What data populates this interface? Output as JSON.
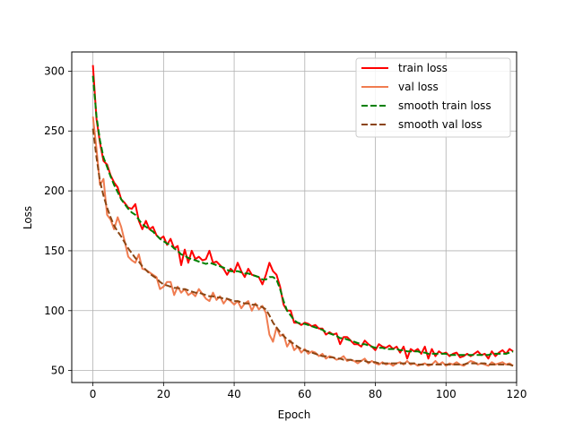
{
  "chart_data": {
    "type": "line",
    "xlabel": "Epoch",
    "ylabel": "Loss",
    "xlim": [
      -6,
      120
    ],
    "ylim": [
      40,
      316
    ],
    "xticks": [
      0,
      20,
      40,
      60,
      80,
      100,
      120
    ],
    "yticks": [
      50,
      100,
      150,
      200,
      250,
      300
    ],
    "grid": true,
    "legend_position": "top-right",
    "series": [
      {
        "name": "train loss",
        "color": "#ff0000",
        "dash": "solid",
        "x": [
          0,
          1,
          2,
          3,
          4,
          5,
          6,
          7,
          8,
          9,
          10,
          11,
          12,
          13,
          14,
          15,
          16,
          17,
          18,
          19,
          20,
          21,
          22,
          23,
          24,
          25,
          26,
          27,
          28,
          29,
          30,
          31,
          32,
          33,
          34,
          35,
          36,
          37,
          38,
          39,
          40,
          41,
          42,
          43,
          44,
          45,
          46,
          47,
          48,
          49,
          50,
          51,
          52,
          53,
          54,
          55,
          56,
          57,
          58,
          59,
          60,
          61,
          62,
          63,
          64,
          65,
          66,
          67,
          68,
          69,
          70,
          71,
          72,
          73,
          74,
          75,
          76,
          77,
          78,
          79,
          80,
          81,
          82,
          83,
          84,
          85,
          86,
          87,
          88,
          89,
          90,
          91,
          92,
          93,
          94,
          95,
          96,
          97,
          98,
          99,
          100,
          101,
          102,
          103,
          104,
          105,
          106,
          107,
          108,
          109,
          110,
          111,
          112,
          113,
          114,
          115,
          116,
          117,
          118,
          119
        ],
        "values": [
          305,
          260,
          240,
          225,
          222,
          213,
          207,
          203,
          193,
          190,
          186,
          185,
          189,
          175,
          168,
          175,
          168,
          170,
          163,
          160,
          162,
          155,
          160,
          152,
          154,
          138,
          151,
          140,
          150,
          143,
          145,
          142,
          143,
          150,
          140,
          141,
          138,
          135,
          130,
          135,
          132,
          140,
          133,
          128,
          135,
          130,
          129,
          128,
          122,
          130,
          140,
          133,
          130,
          120,
          105,
          100,
          100,
          90,
          90,
          88,
          90,
          89,
          87,
          88,
          85,
          85,
          80,
          82,
          80,
          81,
          72,
          78,
          78,
          75,
          72,
          72,
          70,
          75,
          72,
          70,
          67,
          72,
          70,
          69,
          71,
          68,
          70,
          65,
          70,
          60,
          68,
          66,
          68,
          64,
          70,
          60,
          68,
          62,
          66,
          64,
          65,
          62,
          64,
          65,
          61,
          62,
          64,
          62,
          64,
          66,
          63,
          64,
          60,
          66,
          62,
          65,
          67,
          64,
          68,
          66
        ]
      },
      {
        "name": "val loss",
        "color": "#f07c50",
        "dash": "solid",
        "x": [
          0,
          1,
          2,
          3,
          4,
          5,
          6,
          7,
          8,
          9,
          10,
          11,
          12,
          13,
          14,
          15,
          16,
          17,
          18,
          19,
          20,
          21,
          22,
          23,
          24,
          25,
          26,
          27,
          28,
          29,
          30,
          31,
          32,
          33,
          34,
          35,
          36,
          37,
          38,
          39,
          40,
          41,
          42,
          43,
          44,
          45,
          46,
          47,
          48,
          49,
          50,
          51,
          52,
          53,
          54,
          55,
          56,
          57,
          58,
          59,
          60,
          61,
          62,
          63,
          64,
          65,
          66,
          67,
          68,
          69,
          70,
          71,
          72,
          73,
          74,
          75,
          76,
          77,
          78,
          79,
          80,
          81,
          82,
          83,
          84,
          85,
          86,
          87,
          88,
          89,
          90,
          91,
          92,
          93,
          94,
          95,
          96,
          97,
          98,
          99,
          100,
          101,
          102,
          103,
          104,
          105,
          106,
          107,
          108,
          109,
          110,
          111,
          112,
          113,
          114,
          115,
          116,
          117,
          118,
          119
        ],
        "values": [
          262,
          235,
          205,
          210,
          180,
          176,
          168,
          178,
          170,
          158,
          145,
          142,
          140,
          147,
          135,
          134,
          132,
          130,
          128,
          118,
          120,
          124,
          124,
          113,
          120,
          115,
          118,
          113,
          115,
          112,
          118,
          114,
          110,
          108,
          115,
          109,
          112,
          106,
          110,
          108,
          105,
          108,
          102,
          106,
          108,
          100,
          106,
          101,
          104,
          98,
          80,
          74,
          86,
          79,
          80,
          70,
          75,
          67,
          70,
          65,
          68,
          64,
          66,
          65,
          62,
          64,
          60,
          62,
          61,
          59,
          60,
          62,
          58,
          59,
          58,
          56,
          58,
          60,
          56,
          58,
          56,
          55,
          57,
          55,
          56,
          54,
          56,
          57,
          55,
          58,
          55,
          56,
          54,
          55,
          56,
          54,
          55,
          58,
          55,
          57,
          54,
          56,
          55,
          57,
          55,
          54,
          56,
          58,
          57,
          55,
          56,
          55,
          54,
          57,
          55,
          56,
          57,
          55,
          56,
          54
        ]
      },
      {
        "name": "smooth train loss",
        "color": "#008000",
        "dash": "dashed",
        "x": [
          0,
          1,
          2,
          3,
          4,
          5,
          6,
          7,
          8,
          9,
          10,
          11,
          12,
          13,
          14,
          15,
          16,
          17,
          18,
          19,
          20,
          21,
          22,
          23,
          24,
          25,
          26,
          27,
          28,
          29,
          30,
          31,
          32,
          33,
          34,
          35,
          36,
          37,
          38,
          39,
          40,
          41,
          42,
          43,
          44,
          45,
          46,
          47,
          48,
          49,
          50,
          51,
          52,
          53,
          54,
          55,
          56,
          57,
          58,
          59,
          60,
          61,
          62,
          63,
          64,
          65,
          66,
          67,
          68,
          69,
          70,
          71,
          72,
          73,
          74,
          75,
          76,
          77,
          78,
          79,
          80,
          81,
          82,
          83,
          84,
          85,
          86,
          87,
          88,
          89,
          90,
          91,
          92,
          93,
          94,
          95,
          96,
          97,
          98,
          99,
          100,
          101,
          102,
          103,
          104,
          105,
          106,
          107,
          108,
          109,
          110,
          111,
          112,
          113,
          114,
          115,
          116,
          117,
          118,
          119
        ],
        "values": [
          296,
          262,
          242,
          228,
          220,
          212,
          205,
          199,
          193,
          189,
          185,
          182,
          180,
          176,
          172,
          170,
          168,
          166,
          163,
          160,
          158,
          156,
          155,
          152,
          150,
          147,
          146,
          144,
          143,
          142,
          141,
          140,
          139,
          140,
          139,
          138,
          137,
          136,
          134,
          133,
          133,
          133,
          132,
          131,
          131,
          130,
          129,
          128,
          126,
          126,
          128,
          128,
          126,
          118,
          108,
          100,
          96,
          92,
          90,
          89,
          89,
          88,
          87,
          86,
          85,
          84,
          82,
          81,
          80,
          79,
          77,
          77,
          76,
          75,
          74,
          73,
          72,
          72,
          71,
          70,
          69,
          69,
          69,
          68,
          68,
          68,
          68,
          67,
          67,
          66,
          66,
          66,
          66,
          65,
          65,
          64,
          64,
          64,
          64,
          64,
          64,
          63,
          63,
          63,
          63,
          63,
          63,
          63,
          63,
          63,
          63,
          63,
          63,
          64,
          64,
          64,
          64,
          64,
          65,
          66
        ]
      },
      {
        "name": "smooth val loss",
        "color": "#8b4513",
        "dash": "dashed",
        "x": [
          0,
          1,
          2,
          3,
          4,
          5,
          6,
          7,
          8,
          9,
          10,
          11,
          12,
          13,
          14,
          15,
          16,
          17,
          18,
          19,
          20,
          21,
          22,
          23,
          24,
          25,
          26,
          27,
          28,
          29,
          30,
          31,
          32,
          33,
          34,
          35,
          36,
          37,
          38,
          39,
          40,
          41,
          42,
          43,
          44,
          45,
          46,
          47,
          48,
          49,
          50,
          51,
          52,
          53,
          54,
          55,
          56,
          57,
          58,
          59,
          60,
          61,
          62,
          63,
          64,
          65,
          66,
          67,
          68,
          69,
          70,
          71,
          72,
          73,
          74,
          75,
          76,
          77,
          78,
          79,
          80,
          81,
          82,
          83,
          84,
          85,
          86,
          87,
          88,
          89,
          90,
          91,
          92,
          93,
          94,
          95,
          96,
          97,
          98,
          99,
          100,
          101,
          102,
          103,
          104,
          105,
          106,
          107,
          108,
          109,
          110,
          111,
          112,
          113,
          114,
          115,
          116,
          117,
          118,
          119
        ],
        "values": [
          252,
          228,
          208,
          196,
          186,
          178,
          171,
          166,
          162,
          157,
          152,
          148,
          144,
          141,
          137,
          134,
          131,
          129,
          127,
          124,
          122,
          121,
          120,
          119,
          119,
          118,
          118,
          117,
          116,
          115,
          115,
          114,
          113,
          112,
          112,
          111,
          111,
          110,
          110,
          109,
          108,
          108,
          107,
          106,
          106,
          105,
          105,
          104,
          103,
          101,
          96,
          90,
          86,
          82,
          79,
          76,
          74,
          72,
          70,
          68,
          67,
          66,
          65,
          64,
          63,
          62,
          62,
          61,
          61,
          60,
          60,
          59,
          59,
          59,
          58,
          58,
          58,
          58,
          57,
          57,
          57,
          56,
          56,
          56,
          56,
          56,
          56,
          56,
          56,
          56,
          56,
          56,
          55,
          55,
          55,
          55,
          55,
          55,
          55,
          55,
          55,
          55,
          55,
          55,
          55,
          55,
          56,
          56,
          56,
          56,
          56,
          56,
          55,
          55,
          55,
          55,
          55,
          55,
          55,
          54
        ]
      }
    ]
  }
}
